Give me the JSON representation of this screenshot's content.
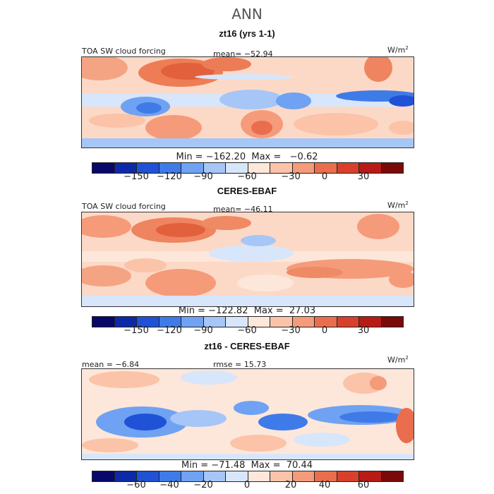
{
  "main_title": "ANN",
  "colors": {
    "scale": [
      "#08086b",
      "#0c2aa8",
      "#1f52d6",
      "#3f7be8",
      "#6fa2f2",
      "#a6c6f7",
      "#d7e6fb",
      "#fde7da",
      "#fbc3a8",
      "#f59b7a",
      "#ea6d4d",
      "#d9402b",
      "#b81b15",
      "#7a0a0a"
    ],
    "land_line": "#1a1a1a"
  },
  "panels": [
    {
      "title": "zt16 (yrs 1-1)",
      "label_left": "TOA SW cloud forcing",
      "label_center": "mean=  −52.94",
      "unit": "W/m",
      "unit_sup": "2",
      "stats": "Min = −162.20  Max =   −0.62",
      "ticks": [
        "−150",
        "−120",
        "−90",
        "−60",
        "−30",
        "0",
        "30"
      ]
    },
    {
      "title": "CERES-EBAF",
      "label_left": "TOA SW cloud forcing",
      "label_center": "mean=  −46.11",
      "unit": "W/m",
      "unit_sup": "2",
      "stats": "Min = −122.82  Max =  27.03",
      "ticks": [
        "−150",
        "−120",
        "−90",
        "−60",
        "−30",
        "0",
        "30"
      ]
    },
    {
      "title": "zt16 - CERES-EBAF",
      "label_left": "mean =  −6.84",
      "label_center": "rmse =  15.73",
      "unit": "W/m",
      "unit_sup": "2",
      "stats": "Min = −71.48  Max =  70.44",
      "ticks": [
        "−60",
        "−40",
        "−20",
        "0",
        "20",
        "40",
        "60"
      ]
    }
  ]
}
